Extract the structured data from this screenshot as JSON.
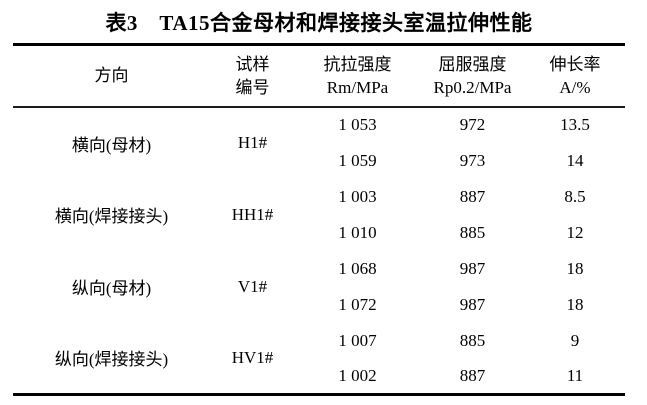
{
  "page": {
    "title": "表3　TA15合金母材和焊接接头室温拉伸性能"
  },
  "table": {
    "headers": [
      {
        "line1": "方向",
        "line2": ""
      },
      {
        "line1": "试样",
        "line2": "编号"
      },
      {
        "line1": "抗拉强度",
        "line2": "Rm/MPa"
      },
      {
        "line1": "屈服强度",
        "line2": "Rp0.2/MPa"
      },
      {
        "line1": "伸长率",
        "line2": "A/%"
      }
    ],
    "groups": [
      {
        "direction": "横向(母材)",
        "specimen_id": "H1#",
        "rows": [
          {
            "rm": "1 053",
            "rp02": "972",
            "elongation": "13.5"
          },
          {
            "rm": "1 059",
            "rp02": "973",
            "elongation": "14"
          }
        ]
      },
      {
        "direction": "横向(焊接接头)",
        "specimen_id": "HH1#",
        "rows": [
          {
            "rm": "1 003",
            "rp02": "887",
            "elongation": "8.5"
          },
          {
            "rm": "1 010",
            "rp02": "885",
            "elongation": "12"
          }
        ]
      },
      {
        "direction": "纵向(母材)",
        "specimen_id": "V1#",
        "rows": [
          {
            "rm": "1 068",
            "rp02": "987",
            "elongation": "18"
          },
          {
            "rm": "1 072",
            "rp02": "987",
            "elongation": "18"
          }
        ]
      },
      {
        "direction": "纵向(焊接接头)",
        "specimen_id": "HV1#",
        "rows": [
          {
            "rm": "1 007",
            "rp02": "885",
            "elongation": "9"
          },
          {
            "rm": "1 002",
            "rp02": "887",
            "elongation": "11"
          }
        ]
      }
    ]
  }
}
